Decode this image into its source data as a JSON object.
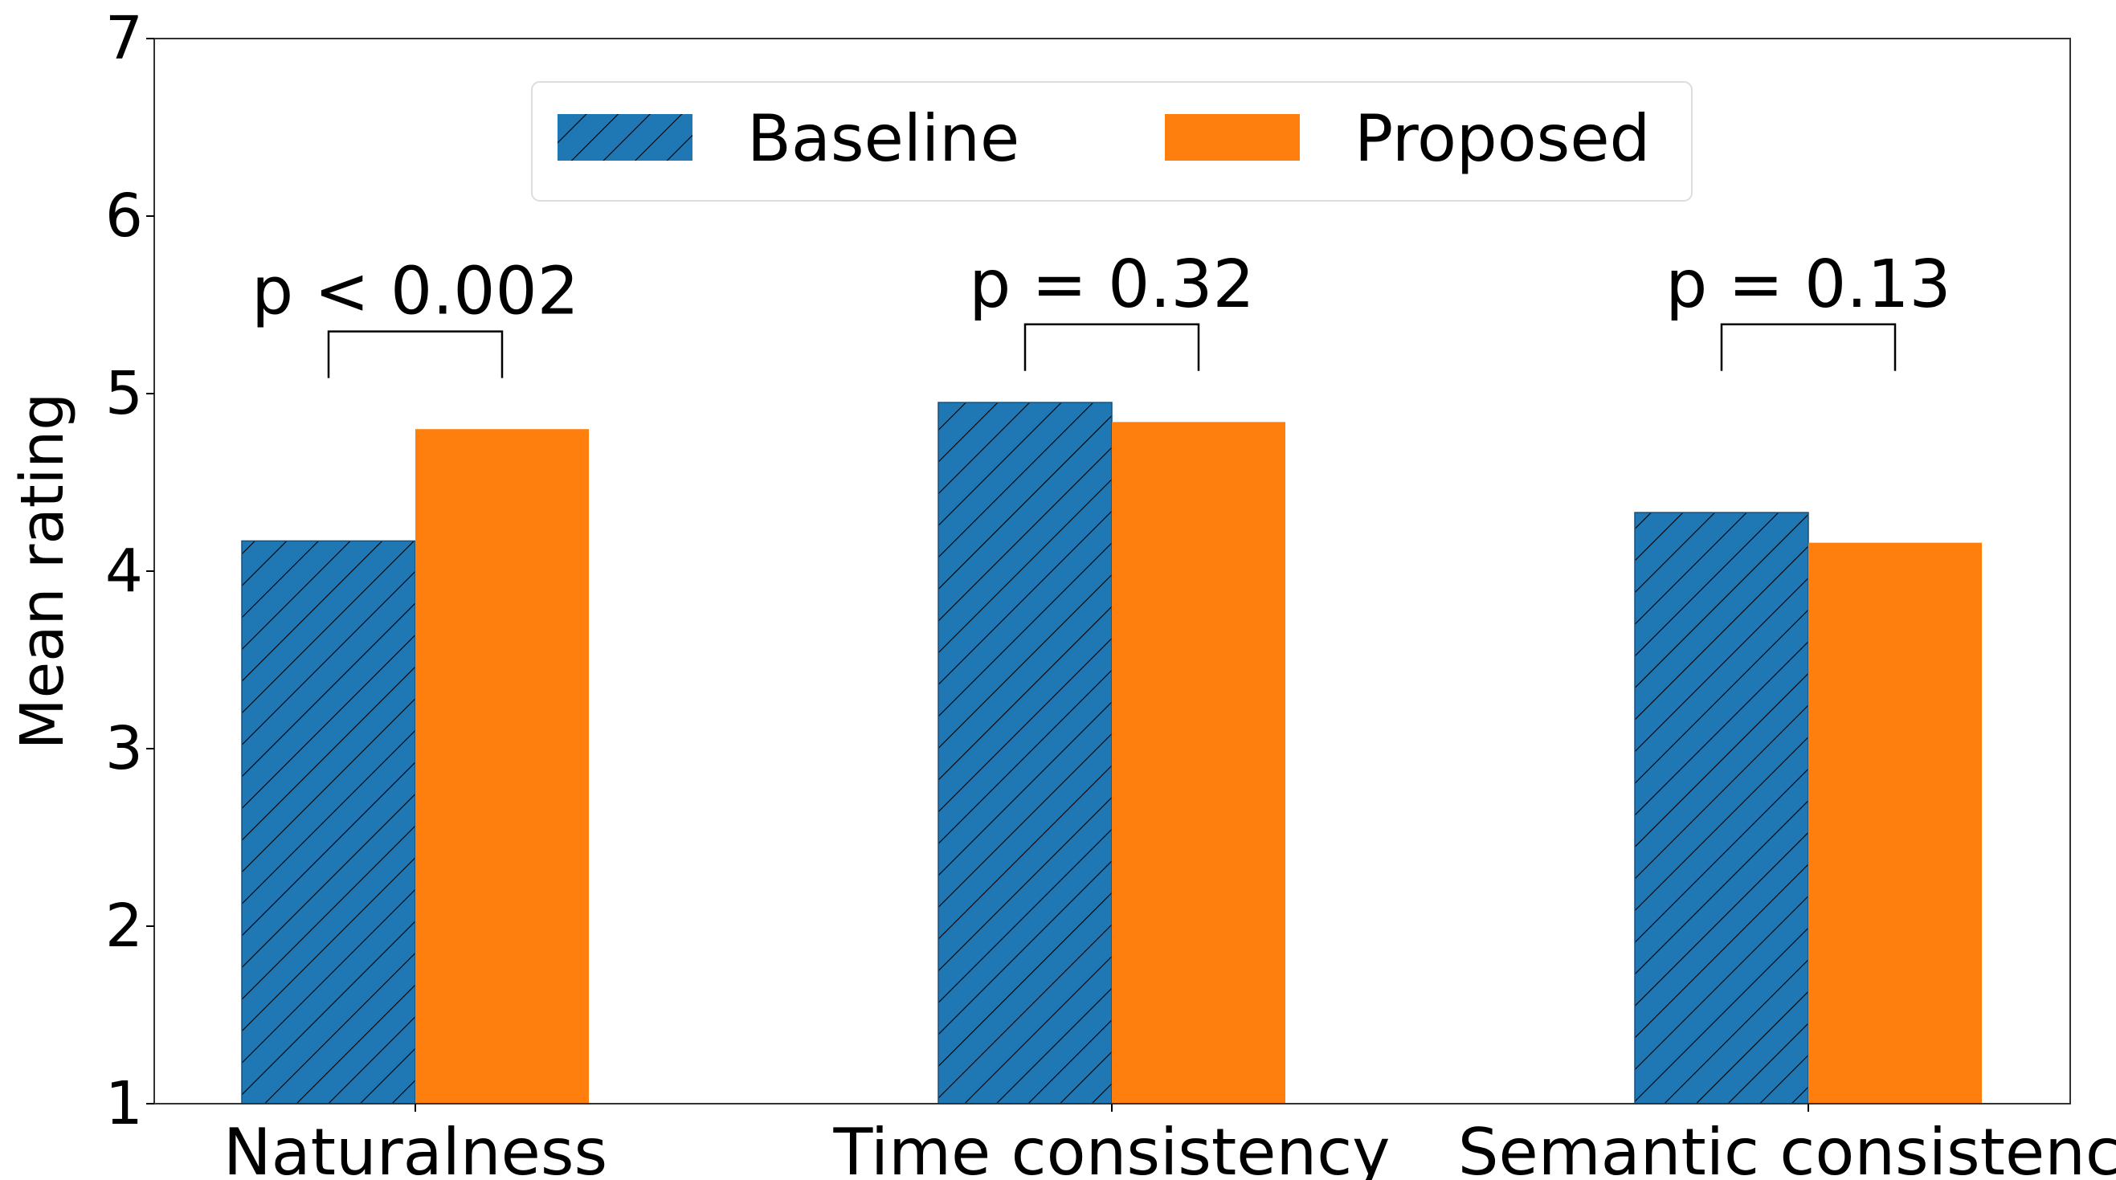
{
  "chart_data": {
    "type": "bar",
    "categories": [
      "Naturalness",
      "Time consistency",
      "Semantic consistency"
    ],
    "series": [
      {
        "name": "Baseline",
        "values": [
          4.17,
          4.95,
          4.33
        ],
        "color": "#1f77b4",
        "pattern": "hatch"
      },
      {
        "name": "Proposed",
        "values": [
          4.8,
          4.84,
          4.16
        ],
        "color": "#ff7f0e",
        "pattern": "solid"
      }
    ],
    "title": "",
    "xlabel": "",
    "ylabel": "Mean rating",
    "ylim": [
      1,
      7
    ],
    "yticks": [
      "1",
      "2",
      "3",
      "4",
      "5",
      "6",
      "7"
    ],
    "grid": false,
    "legend_position": "top-center",
    "annotations": [
      {
        "category": "Naturalness",
        "text": "p < 0.002",
        "bracket_y": 5.35
      },
      {
        "category": "Time consistency",
        "text": "p = 0.32",
        "bracket_y": 5.39
      },
      {
        "category": "Semantic consistency",
        "text": "p = 0.13",
        "bracket_y": 5.39
      }
    ]
  }
}
